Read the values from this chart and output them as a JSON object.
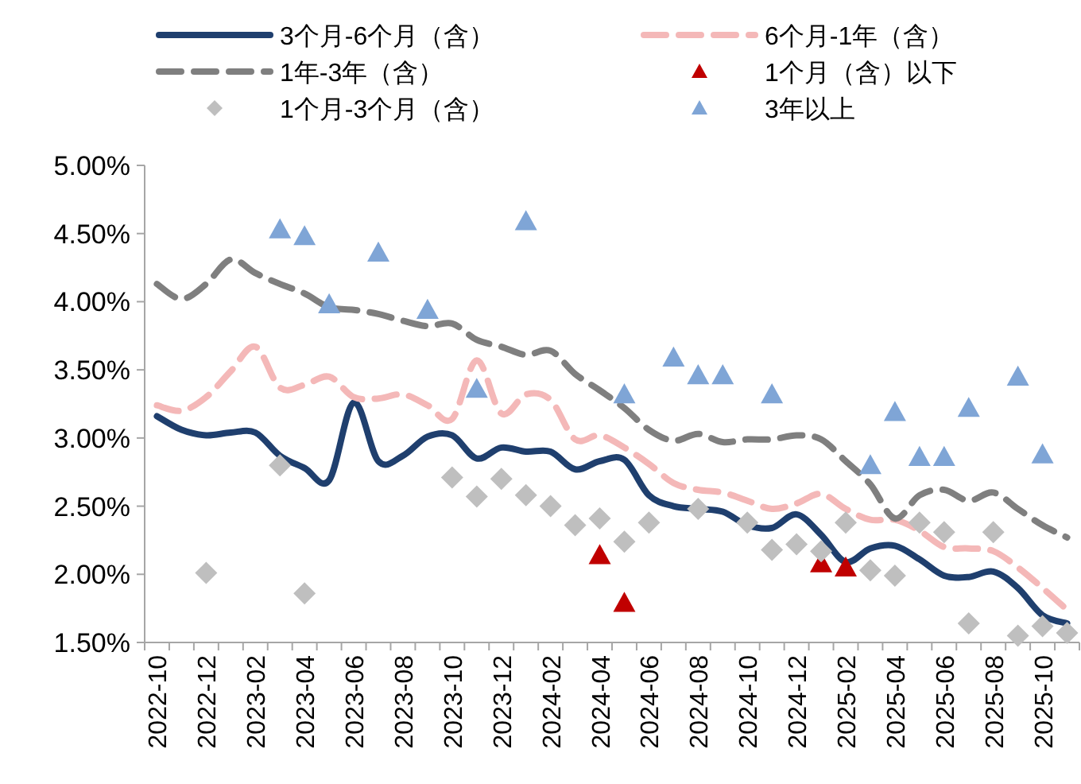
{
  "chart_data": {
    "type": "line",
    "categories": [
      "2022-10",
      null,
      "2022-12",
      null,
      "2023-02",
      null,
      "2023-04",
      null,
      "2023-06",
      null,
      "2023-08",
      null,
      "2023-10",
      null,
      "2023-12",
      null,
      "2024-02",
      null,
      "2024-04",
      null,
      "2024-06",
      null,
      "2024-08",
      null,
      "2024-10",
      null,
      "2024-12",
      null,
      "2025-02",
      null,
      "2025-04",
      null,
      "2025-06",
      null,
      "2025-08",
      null,
      "2025-10",
      null
    ],
    "ylim": [
      1.5,
      5.0
    ],
    "yticks": [
      {
        "value": 1.5,
        "label": "1.50%"
      },
      {
        "value": 2.0,
        "label": "2.00%"
      },
      {
        "value": 2.5,
        "label": "2.50%"
      },
      {
        "value": 3.0,
        "label": "3.00%"
      },
      {
        "value": 3.5,
        "label": "3.50%"
      },
      {
        "value": 4.0,
        "label": "4.00%"
      },
      {
        "value": 4.5,
        "label": "4.50%"
      },
      {
        "value": 5.0,
        "label": "5.00%"
      }
    ],
    "grid": false,
    "legend": "top",
    "series": [
      {
        "name": "3个月-6个月（含）",
        "line_style": "solid",
        "marker": "none",
        "color": "#1f3f6e",
        "values": [
          3.16,
          3.06,
          3.02,
          3.04,
          3.04,
          2.87,
          2.78,
          2.69,
          3.26,
          2.83,
          2.87,
          3.01,
          3.02,
          2.85,
          2.93,
          2.9,
          2.9,
          2.77,
          2.83,
          2.84,
          2.58,
          2.5,
          2.48,
          2.46,
          2.36,
          2.34,
          2.44,
          2.29,
          2.09,
          2.19,
          2.21,
          2.11,
          1.99,
          1.98,
          2.02,
          1.9,
          1.7,
          1.64
        ]
      },
      {
        "name": "6个月-1年（含）",
        "line_style": "dashed",
        "marker": "none",
        "color": "#f4b8b8",
        "values": [
          3.24,
          3.2,
          3.3,
          3.49,
          3.67,
          3.37,
          3.39,
          3.45,
          3.3,
          3.29,
          3.32,
          3.24,
          3.14,
          3.57,
          3.18,
          3.32,
          3.28,
          2.99,
          3.02,
          2.93,
          2.81,
          2.67,
          2.62,
          2.6,
          2.54,
          2.48,
          2.52,
          2.59,
          2.48,
          2.4,
          2.4,
          2.32,
          2.2,
          2.19,
          2.17,
          2.05,
          1.9,
          1.74
        ]
      },
      {
        "name": "1年-3年（含）",
        "line_style": "dashed",
        "marker": "none",
        "color": "#7f7f7f",
        "values": [
          4.13,
          4.02,
          4.13,
          4.31,
          4.21,
          4.13,
          4.06,
          3.96,
          3.94,
          3.91,
          3.86,
          3.82,
          3.84,
          3.72,
          3.67,
          3.61,
          3.64,
          3.47,
          3.35,
          3.22,
          3.06,
          2.98,
          3.03,
          2.97,
          2.99,
          2.99,
          3.02,
          2.99,
          2.83,
          2.66,
          2.41,
          2.58,
          2.62,
          2.54,
          2.6,
          2.48,
          2.36,
          2.27
        ]
      },
      {
        "name": "1个月（含）以下",
        "type": "scatter",
        "marker": "triangle",
        "color": "#c00000",
        "values": [
          null,
          null,
          null,
          null,
          null,
          null,
          null,
          null,
          null,
          null,
          null,
          null,
          null,
          null,
          null,
          null,
          null,
          null,
          2.14,
          1.79,
          null,
          null,
          null,
          null,
          null,
          null,
          null,
          2.08,
          2.05,
          null,
          null,
          null,
          null,
          null,
          null,
          null,
          null,
          null
        ]
      },
      {
        "name": "1个月-3个月（含）",
        "type": "scatter",
        "marker": "diamond",
        "color": "#bfbfbf",
        "values": [
          null,
          null,
          2.01,
          null,
          null,
          2.8,
          1.86,
          null,
          null,
          null,
          null,
          null,
          2.71,
          2.57,
          2.7,
          2.58,
          2.5,
          2.36,
          2.41,
          2.24,
          2.38,
          null,
          2.48,
          null,
          2.38,
          2.18,
          2.22,
          2.17,
          2.38,
          2.03,
          1.99,
          2.38,
          2.31,
          1.64,
          2.31,
          1.55,
          1.62,
          1.57
        ]
      },
      {
        "name": "3年以上",
        "type": "scatter",
        "marker": "triangle",
        "color": "#7fa5d6",
        "values": [
          null,
          null,
          null,
          null,
          null,
          4.53,
          4.48,
          3.98,
          null,
          4.36,
          null,
          3.94,
          null,
          3.36,
          null,
          4.59,
          null,
          null,
          null,
          3.32,
          null,
          3.59,
          3.46,
          3.46,
          null,
          3.32,
          null,
          null,
          null,
          2.8,
          3.19,
          2.86,
          2.86,
          3.22,
          null,
          3.45,
          2.88,
          null
        ]
      }
    ]
  }
}
